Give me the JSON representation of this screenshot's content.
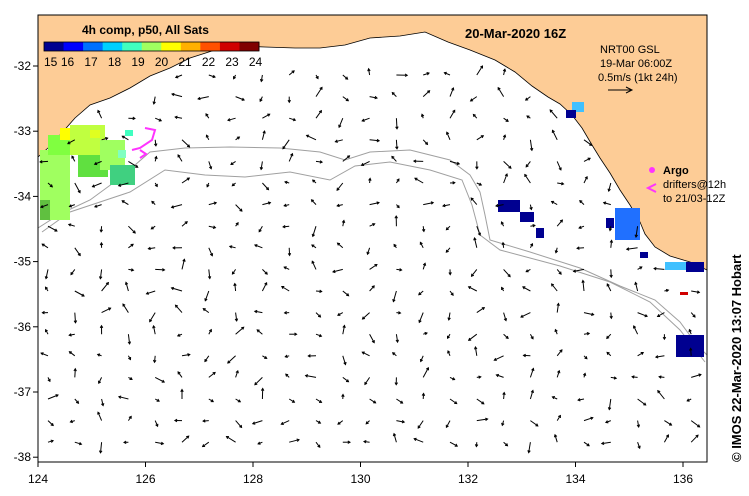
{
  "title": "20-Mar-2020 16Z",
  "colorbar": {
    "title": "4h comp, p50, All Sats",
    "tick_labels": [
      "15",
      "16",
      "17",
      "18",
      "19",
      "20",
      "21",
      "22",
      "23",
      "24"
    ],
    "colors": [
      "#000090",
      "#0000ff",
      "#0070ff",
      "#00d0ff",
      "#40ffc0",
      "#a0ff60",
      "#ffff00",
      "#ffb000",
      "#ff5000",
      "#d00000",
      "#800000"
    ]
  },
  "current_info": {
    "line1": "NRT00 GSL",
    "line2": "19-Mar 06:00Z",
    "line3": "0.5m/s (1kt 24h)"
  },
  "argo": {
    "label": "Argo",
    "drifters": "drifters@12h",
    "to": "to 21/03-12Z"
  },
  "credit": "© IMOS 22-Mar-2020 13:07 Hobart",
  "axes": {
    "x_ticks": [
      "124",
      "126",
      "128",
      "130",
      "132",
      "134",
      "136"
    ],
    "y_ticks": [
      "-32",
      "-33",
      "-34",
      "-35",
      "-36",
      "-37",
      "-38"
    ]
  },
  "colors": {
    "land": "#fdcc96",
    "ocean": "#ffffff",
    "argo": "#ff33ff",
    "isobath": "#a0a0a0"
  }
}
